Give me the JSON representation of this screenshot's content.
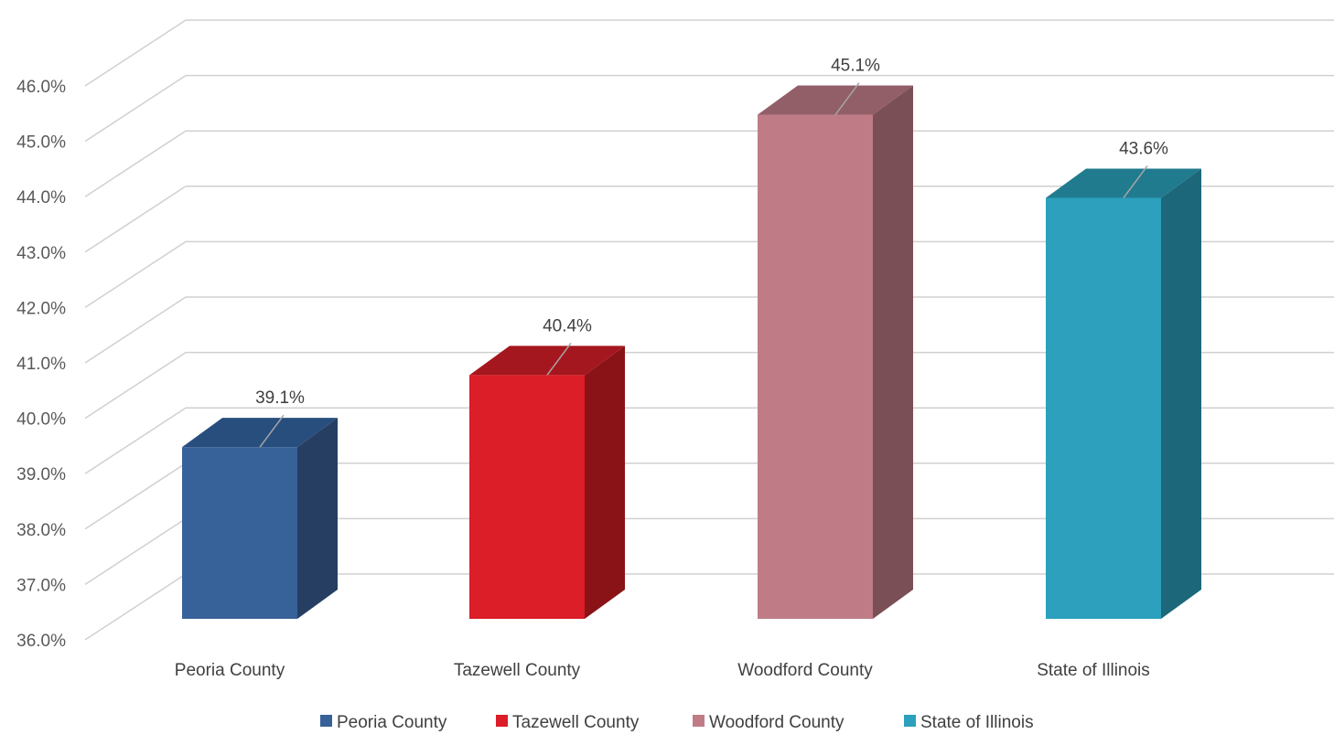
{
  "chart_data": {
    "type": "bar",
    "title": "",
    "xlabel": "",
    "ylabel": "",
    "categories": [
      "Peoria County",
      "Tazewell County",
      "Woodford County",
      "State of Illinois"
    ],
    "values": [
      39.1,
      40.4,
      45.1,
      43.6
    ],
    "value_labels": [
      "39.1%",
      "40.4%",
      "45.1%",
      "43.6%"
    ],
    "ylim": [
      36,
      46
    ],
    "y_ticks": [
      "36.0%",
      "37.0%",
      "38.0%",
      "39.0%",
      "40.0%",
      "41.0%",
      "42.0%",
      "43.0%",
      "44.0%",
      "45.0%",
      "46.0%"
    ],
    "grid": true,
    "style": "3d-column",
    "legend": {
      "position": "bottom",
      "entries": [
        "Peoria County",
        "Tazewell County",
        "Woodford County",
        "State of Illinois"
      ]
    },
    "colors": {
      "front": [
        "#376299",
        "#db1e27",
        "#bf7c87",
        "#2ca0bd"
      ],
      "top": [
        "#284e7e",
        "#a5171e",
        "#925e67",
        "#217b8f"
      ],
      "side": [
        "#253e62",
        "#8a1317",
        "#7a4f56",
        "#1c687a"
      ],
      "grid": "#d0d0d0"
    }
  }
}
